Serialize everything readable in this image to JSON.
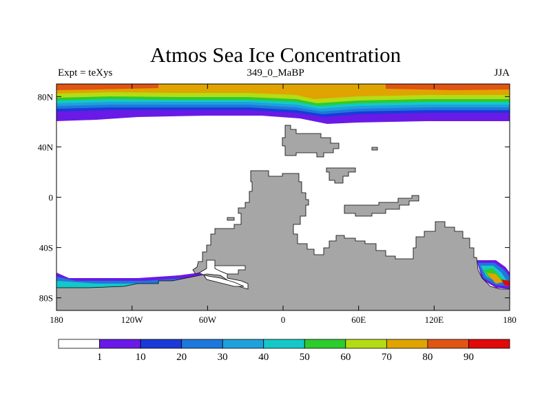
{
  "title": "Atmos Sea Ice Concentration",
  "subtitle_left": "Expt = teXys",
  "subtitle_center": "349_0_MaBP",
  "subtitle_right": "JJA",
  "x_ticks": [
    {
      "value": -180,
      "label": "180"
    },
    {
      "value": -120,
      "label": "120W"
    },
    {
      "value": -60,
      "label": "60W"
    },
    {
      "value": 0,
      "label": "0"
    },
    {
      "value": 60,
      "label": "60E"
    },
    {
      "value": 120,
      "label": "120E"
    },
    {
      "value": 180,
      "label": "180"
    }
  ],
  "y_ticks": [
    {
      "value": 80,
      "label": "80N"
    },
    {
      "value": 40,
      "label": "40N"
    },
    {
      "value": 0,
      "label": "0"
    },
    {
      "value": -40,
      "label": "40S"
    },
    {
      "value": -80,
      "label": "80S"
    }
  ],
  "colorbar": {
    "colors": [
      "#ffffff",
      "#6a1ae6",
      "#1a3ad8",
      "#1e78dc",
      "#1ea0dc",
      "#14c8c8",
      "#2ccc2c",
      "#b4dc14",
      "#e0a400",
      "#e05414",
      "#e00a0a"
    ],
    "labels": [
      "1",
      "10",
      "20",
      "30",
      "40",
      "50",
      "60",
      "70",
      "80",
      "90"
    ]
  },
  "colors": {
    "land": "#a6a6a6",
    "ocean": "#ffffff"
  }
}
